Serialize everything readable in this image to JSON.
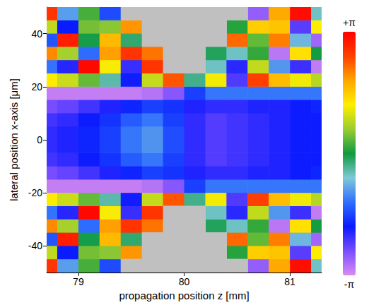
{
  "chart_data": {
    "type": "heatmap",
    "x_label": "propagation position z [mm]",
    "y_label": "lateral position x-axis [μm]",
    "x": [
      78.7,
      78.9,
      79.1,
      79.3,
      79.5,
      79.7,
      79.9,
      80.1,
      80.3,
      80.5,
      80.7,
      80.9,
      81.1,
      81.3
    ],
    "y": [
      -47.5,
      -42.5,
      -37.5,
      -32.5,
      -27.5,
      -22.5,
      -17.5,
      -12.5,
      -7.5,
      -2.5,
      2.5,
      7.5,
      12.5,
      17.5,
      22.5,
      27.5,
      32.5,
      37.5,
      42.5,
      47.5
    ],
    "values": [
      [
        2.63,
        -0.92,
        0.25,
        -1.52,
        null,
        null,
        null,
        null,
        null,
        null,
        -2.68,
        1.84,
        3.0,
        -0.55
      ],
      [
        0.85,
        -1.88,
        0.46,
        0.56,
        1.98,
        null,
        null,
        null,
        null,
        0.11,
        1.53,
        1.62,
        -2.32,
        1.24
      ],
      [
        -1.44,
        2.85,
        -0.04,
        1.7,
        -0.19,
        null,
        null,
        null,
        null,
        2.27,
        0.38,
        2.13,
        -0.76,
        -2.76
      ],
      [
        2.06,
        0.7,
        -1.27,
        1.92,
        2.63,
        2.19,
        null,
        null,
        -0.11,
        -0.54,
        0.17,
        -2.93,
        1.38,
        0.02
      ],
      [
        -1.22,
        -2.04,
        3.06,
        1.21,
        -2.14,
        2.62,
        null,
        null,
        -0.54,
        -2.06,
        0.88,
        -0.98,
        -2.16,
        -2.98
      ],
      [
        1.28,
        0.92,
        0.39,
        -0.44,
        -1.92,
        0.89,
        2.39,
        -0.3,
        1.19,
        -2.28,
        2.52,
        1.69,
        1.17,
        0.8
      ],
      [
        -3.0,
        -3.0,
        -3.0,
        -3.0,
        -3.0,
        -2.9,
        -2.6,
        -1.6,
        -1.2,
        -1.2,
        -1.2,
        -1.2,
        -1.2,
        -1.2
      ],
      [
        -2.5,
        -2.4,
        -2.2,
        -2.0,
        -1.8,
        -1.6,
        -1.7,
        -2.0,
        -2.1,
        -2.1,
        -2.0,
        -2.0,
        -1.9,
        -1.8
      ],
      [
        -2.2,
        -2.1,
        -1.9,
        -1.7,
        -1.4,
        -1.2,
        -1.6,
        -2.1,
        -2.3,
        -2.2,
        -2.1,
        -2.0,
        -1.9,
        -1.9
      ],
      [
        -2.1,
        -2.0,
        -1.8,
        -1.6,
        -1.2,
        -1.0,
        -1.5,
        -2.1,
        -2.3,
        -2.2,
        -2.1,
        -2.0,
        -1.9,
        -1.9
      ],
      [
        -2.1,
        -2.0,
        -1.8,
        -1.6,
        -1.2,
        -1.0,
        -1.5,
        -2.1,
        -2.3,
        -2.2,
        -2.1,
        -2.0,
        -1.9,
        -1.9
      ],
      [
        -2.2,
        -2.1,
        -1.9,
        -1.7,
        -1.4,
        -1.2,
        -1.6,
        -2.1,
        -2.3,
        -2.2,
        -2.1,
        -2.0,
        -1.9,
        -1.9
      ],
      [
        -2.5,
        -2.4,
        -2.2,
        -2.0,
        -1.8,
        -1.6,
        -1.7,
        -2.0,
        -2.1,
        -2.1,
        -2.0,
        -2.0,
        -1.9,
        -1.8
      ],
      [
        -3.0,
        -3.0,
        -3.0,
        -3.0,
        -3.0,
        -2.9,
        -2.6,
        -1.6,
        -1.2,
        -1.2,
        -1.2,
        -1.2,
        -1.2,
        -1.2
      ],
      [
        1.28,
        0.92,
        0.39,
        -0.44,
        -1.92,
        0.89,
        2.39,
        -0.3,
        1.19,
        -2.28,
        2.52,
        1.69,
        1.17,
        0.8
      ],
      [
        -1.22,
        -2.04,
        3.06,
        1.21,
        -2.14,
        2.62,
        null,
        null,
        -0.54,
        -2.06,
        0.88,
        -0.98,
        -2.16,
        -2.98
      ],
      [
        2.06,
        0.7,
        -1.27,
        1.92,
        2.63,
        2.19,
        null,
        null,
        -0.11,
        -0.54,
        0.17,
        -2.93,
        1.38,
        0.02
      ],
      [
        -1.44,
        2.85,
        -0.04,
        1.7,
        -0.19,
        null,
        null,
        null,
        null,
        2.27,
        0.38,
        2.13,
        -0.76,
        -2.76
      ],
      [
        0.85,
        -1.88,
        0.46,
        0.56,
        1.98,
        null,
        null,
        null,
        null,
        0.11,
        1.53,
        1.62,
        -2.32,
        1.24
      ],
      [
        2.63,
        -0.92,
        0.25,
        -1.52,
        null,
        null,
        null,
        null,
        null,
        null,
        -2.68,
        1.84,
        3.0,
        -0.55
      ]
    ],
    "xlim": [
      78.7,
      81.3
    ],
    "xticks": [
      79,
      80,
      81
    ],
    "ylim": [
      -50,
      50
    ],
    "yticks": [
      -40,
      -20,
      0,
      20,
      40
    ],
    "grid": false,
    "colorbar": {
      "range": [
        -3.14159,
        3.14159
      ],
      "ticks": [
        {
          "value": 3.14159,
          "label": "+π"
        },
        {
          "value": -3.14159,
          "label": "-π"
        }
      ]
    }
  }
}
